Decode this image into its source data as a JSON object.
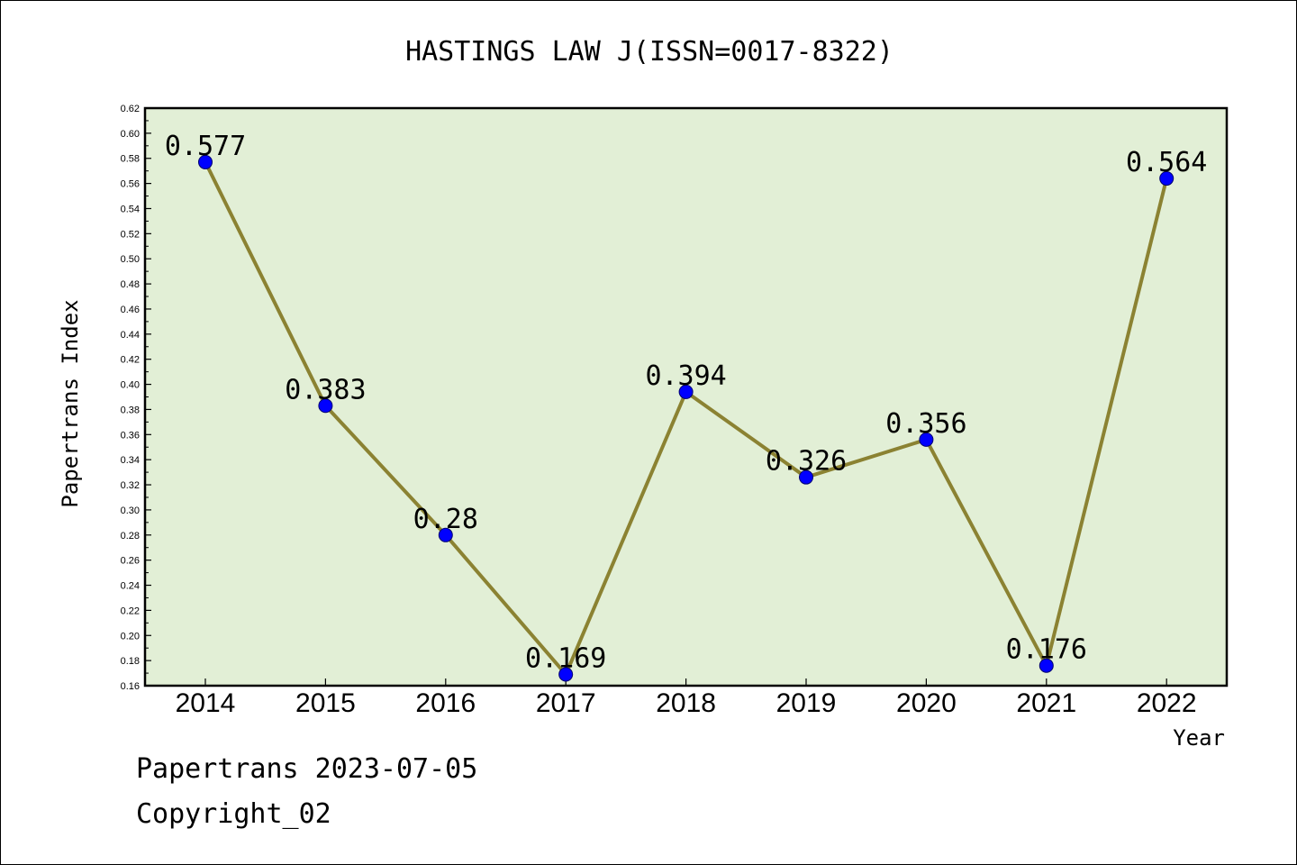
{
  "chart_data": {
    "type": "line",
    "title": "HASTINGS LAW J(ISSN=0017-8322)",
    "xlabel": "Year",
    "ylabel": "Papertrans Index",
    "categories": [
      "2014",
      "2015",
      "2016",
      "2017",
      "2018",
      "2019",
      "2020",
      "2021",
      "2022"
    ],
    "series": [
      {
        "values": [
          0.577,
          0.383,
          0.28,
          0.169,
          0.394,
          0.326,
          0.356,
          0.176,
          0.564
        ]
      }
    ],
    "data_labels": [
      "0.577",
      "0.383",
      "0.28",
      "0.169",
      "0.394",
      "0.326",
      "0.356",
      "0.176",
      "0.564"
    ],
    "ylim": [
      0.16,
      0.62
    ],
    "y_ticks": [
      "0.16",
      "0.18",
      "0.20",
      "0.22",
      "0.24",
      "0.26",
      "0.28",
      "0.30",
      "0.32",
      "0.34",
      "0.36",
      "0.38",
      "0.40",
      "0.42",
      "0.44",
      "0.46",
      "0.48",
      "0.50",
      "0.52",
      "0.54",
      "0.56",
      "0.58",
      "0.60",
      "0.62"
    ],
    "grid": false,
    "legend": "none",
    "colors": {
      "plot_background": "#e2efd6",
      "line": "#8b8232",
      "marker": "#0000ff"
    }
  },
  "footer": {
    "line1": "Papertrans 2023-07-05",
    "line2": "Copyright_02"
  }
}
